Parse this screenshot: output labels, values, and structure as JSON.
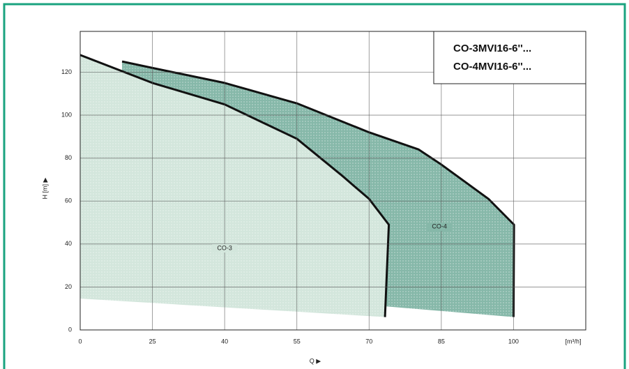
{
  "chart_data": {
    "type": "area",
    "title": [
      "CO-3MVI16-6''...",
      "CO-4MVI16-6''..."
    ],
    "x_label": "Q ▶",
    "y_label": "H [m] ▶",
    "x_unit": "[m³/h]",
    "xlim": [
      10,
      115
    ],
    "ylim": [
      0,
      139
    ],
    "xticks": [
      {
        "value": 10,
        "label": "0"
      },
      25,
      40,
      55,
      70,
      85,
      100
    ],
    "yticks": [
      0,
      20,
      40,
      60,
      80,
      100,
      120
    ],
    "grid": true,
    "series": [
      {
        "name": "CO-4",
        "color": "#86b8a9",
        "x": [
          18.7,
          25,
          40,
          55,
          70,
          80.3,
          85,
          94.8,
          100.1,
          100,
          73.3,
          74.1,
          70,
          64.3,
          55,
          40,
          25,
          18.7
        ],
        "values": [
          125,
          122,
          115,
          105.5,
          92,
          84,
          77,
          61,
          49,
          6,
          11,
          49,
          61,
          72,
          89,
          105,
          115,
          120
        ]
      },
      {
        "name": "CO-3",
        "color": "#d3e6dc",
        "x": [
          10,
          25,
          40,
          55,
          64.3,
          70,
          74.1,
          73.3,
          10
        ],
        "values": [
          128,
          115,
          105,
          89,
          72,
          61,
          49,
          6,
          14.6
        ]
      }
    ]
  }
}
